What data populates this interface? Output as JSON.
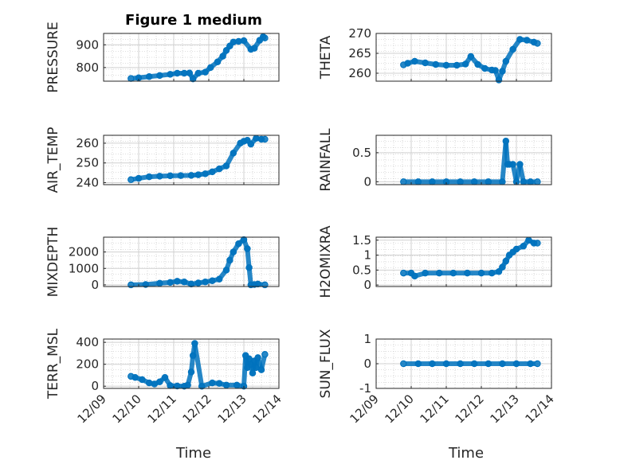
{
  "figure": {
    "title": "Figure 1 medium"
  },
  "colors": {
    "marker": "#0072BD",
    "axes": "#262626",
    "grid": "#bdbdbd"
  },
  "chart_data": [
    {
      "type": "scatter",
      "ylabel": "PRESSURE",
      "title": "Figure 1 medium",
      "yticks": [
        "800",
        "900"
      ],
      "ytick_values": [
        800,
        900
      ],
      "ylim": [
        740,
        950
      ],
      "xlim": [
        0,
        5
      ],
      "grid": true,
      "series": [
        {
          "x": [
            0.78,
            1.0,
            1.3,
            1.6,
            1.9,
            2.1,
            2.3,
            2.45,
            2.55,
            2.7,
            2.9,
            3.05,
            3.25,
            3.4,
            3.5,
            3.6,
            3.7,
            3.85,
            4.0,
            4.2,
            4.3,
            4.45,
            4.55,
            4.6
          ],
          "y": [
            752,
            755,
            760,
            765,
            770,
            775,
            775,
            776,
            750,
            775,
            780,
            800,
            825,
            850,
            875,
            895,
            912,
            915,
            918,
            880,
            885,
            920,
            935,
            930
          ]
        }
      ]
    },
    {
      "type": "scatter",
      "ylabel": "THETA",
      "yticks": [
        "260",
        "265",
        "270"
      ],
      "ytick_values": [
        260,
        265,
        270
      ],
      "ylim": [
        258,
        270
      ],
      "xlim": [
        0,
        5
      ],
      "grid": true,
      "series": [
        {
          "x": [
            0.78,
            0.9,
            1.1,
            1.4,
            1.7,
            2.0,
            2.3,
            2.55,
            2.7,
            2.9,
            3.1,
            3.3,
            3.4,
            3.5,
            3.6,
            3.7,
            3.9,
            4.1,
            4.3,
            4.5,
            4.6
          ],
          "y": [
            262.1,
            262.5,
            263.0,
            262.6,
            262.2,
            262.0,
            262.0,
            262.3,
            264.2,
            262.2,
            261.2,
            260.8,
            260.7,
            258.3,
            260.5,
            263.0,
            266.0,
            268.5,
            268.3,
            267.8,
            267.5
          ]
        }
      ]
    },
    {
      "type": "scatter",
      "ylabel": "AIR_TEMP",
      "yticks": [
        "240",
        "250",
        "260"
      ],
      "ytick_values": [
        240,
        250,
        260
      ],
      "ylim": [
        239,
        264
      ],
      "xlim": [
        0,
        5
      ],
      "grid": true,
      "series": [
        {
          "x": [
            0.78,
            1.0,
            1.3,
            1.6,
            1.9,
            2.2,
            2.5,
            2.7,
            2.9,
            3.1,
            3.3,
            3.5,
            3.7,
            3.9,
            4.0,
            4.1,
            4.2,
            4.35,
            4.5,
            4.6
          ],
          "y": [
            241.5,
            242.2,
            243.0,
            243.3,
            243.5,
            243.6,
            243.7,
            244.0,
            244.5,
            245.5,
            247.0,
            248.5,
            255.0,
            260.0,
            261.0,
            261.5,
            259.5,
            262.5,
            262.0,
            262.0
          ]
        }
      ]
    },
    {
      "type": "scatter",
      "ylabel": "RAINFALL",
      "yticks": [
        "0",
        "0.5"
      ],
      "ytick_values": [
        0,
        0.5
      ],
      "ylim": [
        -0.05,
        0.8
      ],
      "xlim": [
        0,
        5
      ],
      "grid": true,
      "series": [
        {
          "x": [
            0.78,
            1.2,
            1.6,
            2.0,
            2.4,
            2.8,
            3.2,
            3.6,
            3.7,
            3.75,
            3.8,
            3.9,
            4.0,
            4.1,
            4.2,
            4.4,
            4.6
          ],
          "y": [
            0,
            0,
            0,
            0,
            0,
            0,
            0,
            0,
            0.7,
            0.3,
            0.3,
            0.3,
            0,
            0.3,
            0,
            0,
            0
          ]
        }
      ]
    },
    {
      "type": "scatter",
      "ylabel": "MIXDEPTH",
      "yticks": [
        "0",
        "1000",
        "2000"
      ],
      "ytick_values": [
        0,
        1000,
        2000
      ],
      "ylim": [
        -100,
        2900
      ],
      "xlim": [
        0,
        5
      ],
      "grid": true,
      "series": [
        {
          "x": [
            0.78,
            1.2,
            1.6,
            1.9,
            2.1,
            2.3,
            2.5,
            2.7,
            2.9,
            3.1,
            3.3,
            3.5,
            3.6,
            3.7,
            3.85,
            4.0,
            4.1,
            4.15,
            4.2,
            4.3,
            4.4,
            4.6
          ],
          "y": [
            0,
            20,
            100,
            150,
            220,
            180,
            50,
            120,
            180,
            250,
            350,
            900,
            1500,
            2000,
            2500,
            2750,
            2200,
            1050,
            0,
            20,
            50,
            0
          ]
        }
      ]
    },
    {
      "type": "scatter",
      "ylabel": "H2OMIXRA",
      "yticks": [
        "0",
        "0.5",
        "1",
        "1.5"
      ],
      "ytick_values": [
        0,
        0.5,
        1,
        1.5
      ],
      "ylim": [
        -0.05,
        1.6
      ],
      "xlim": [
        0,
        5
      ],
      "grid": true,
      "series": [
        {
          "x": [
            0.78,
            1.0,
            1.1,
            1.4,
            1.8,
            2.2,
            2.6,
            3.0,
            3.3,
            3.5,
            3.6,
            3.7,
            3.8,
            3.9,
            4.0,
            4.2,
            4.35,
            4.5,
            4.6
          ],
          "y": [
            0.4,
            0.4,
            0.3,
            0.4,
            0.4,
            0.4,
            0.4,
            0.4,
            0.4,
            0.45,
            0.6,
            0.8,
            1.0,
            1.1,
            1.2,
            1.3,
            1.5,
            1.4,
            1.4
          ]
        }
      ]
    },
    {
      "type": "scatter",
      "ylabel": "TERR_MSL",
      "yticks": [
        "0",
        "200",
        "400"
      ],
      "ytick_values": [
        0,
        200,
        400
      ],
      "ylim": [
        -20,
        430
      ],
      "xlim": [
        0,
        5
      ],
      "grid": true,
      "series": [
        {
          "x": [
            0.78,
            0.9,
            1.1,
            1.3,
            1.45,
            1.6,
            1.75,
            1.9,
            2.1,
            2.3,
            2.4,
            2.5,
            2.55,
            2.6,
            2.8,
            3.1,
            3.3,
            3.5,
            3.8,
            4.0,
            4.05,
            4.1,
            4.15,
            4.2,
            4.25,
            4.3,
            4.35,
            4.4,
            4.5,
            4.6
          ],
          "y": [
            90,
            80,
            60,
            30,
            20,
            40,
            80,
            5,
            2,
            0,
            10,
            130,
            280,
            390,
            0,
            30,
            25,
            10,
            10,
            0,
            280,
            170,
            250,
            200,
            120,
            230,
            170,
            260,
            150,
            290
          ]
        }
      ]
    },
    {
      "type": "scatter",
      "ylabel": "SUN_FLUX",
      "yticks": [
        "-1",
        "0",
        "1"
      ],
      "ytick_values": [
        -1,
        0,
        1
      ],
      "ylim": [
        -1,
        1
      ],
      "xlim": [
        0,
        5
      ],
      "grid": true,
      "series": [
        {
          "x": [
            0.78,
            1.2,
            1.6,
            2.0,
            2.4,
            2.8,
            3.2,
            3.6,
            4.0,
            4.4,
            4.6
          ],
          "y": [
            0,
            0,
            0,
            0,
            0,
            0,
            0,
            0,
            0,
            0,
            0
          ]
        }
      ]
    }
  ],
  "xticks": [
    "12/09",
    "12/10",
    "12/11",
    "12/12",
    "12/13",
    "12/14"
  ],
  "xlabel": "Time"
}
